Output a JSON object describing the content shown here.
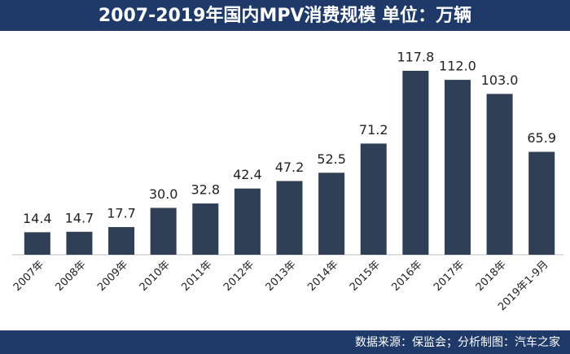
{
  "chart_data": {
    "type": "bar",
    "title": "2007-2019年国内MPV消费规模  单位：万辆",
    "categories": [
      "2007年",
      "2008年",
      "2009年",
      "2010年",
      "2011年",
      "2012年",
      "2013年",
      "2014年",
      "2015年",
      "2016年",
      "2017年",
      "2018年",
      "2019年1-9月"
    ],
    "values": [
      14.4,
      14.7,
      17.7,
      30,
      32.8,
      42.4,
      47.2,
      52.5,
      71.2,
      117.8,
      112,
      103,
      65.9
    ],
    "value_labels": [
      "14.4",
      "14.7",
      "17.7",
      "30.0",
      "32.8",
      "42.4",
      "47.2",
      "52.5",
      "71.2",
      "117.8",
      "112.0",
      "103.0",
      "65.9"
    ],
    "color": "#2f3f55",
    "source": "数据来源：保监会；分析制图：汽车之家"
  }
}
